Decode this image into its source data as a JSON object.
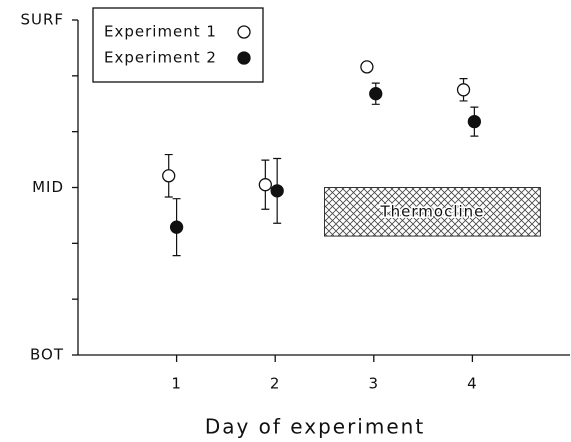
{
  "chart_data": {
    "type": "scatter",
    "x_label": "Day of experiment",
    "xlim": [
      0,
      5
    ],
    "xticks": [
      1,
      2,
      3,
      4
    ],
    "ylim": [
      0,
      6
    ],
    "yticks": [
      {
        "value": 0,
        "label": "BOT"
      },
      {
        "value": 3,
        "label": "MID"
      },
      {
        "value": 6,
        "label": "SURF"
      }
    ],
    "yminor_ticks": [
      1,
      2,
      4,
      5
    ],
    "legend": "upper left",
    "series": [
      {
        "name": "Experiment 1",
        "color": "#111111",
        "marker": "open",
        "x": [
          0.92,
          1.9,
          2.93,
          3.91
        ],
        "values": [
          3.21,
          3.05,
          5.16,
          4.75
        ],
        "errors": [
          0.38,
          0.44,
          0.05,
          0.2
        ]
      },
      {
        "name": "Experiment 2",
        "color": "#111111",
        "marker": "filled",
        "x": [
          1.0,
          2.02,
          3.02,
          4.02
        ],
        "values": [
          2.29,
          2.94,
          4.68,
          4.18
        ],
        "errors": [
          0.51,
          0.58,
          0.19,
          0.26
        ]
      }
    ],
    "annotation": {
      "text": "Thermocline",
      "x": [
        2.5,
        4.69
      ],
      "y": [
        2.13,
        3.0
      ]
    }
  }
}
